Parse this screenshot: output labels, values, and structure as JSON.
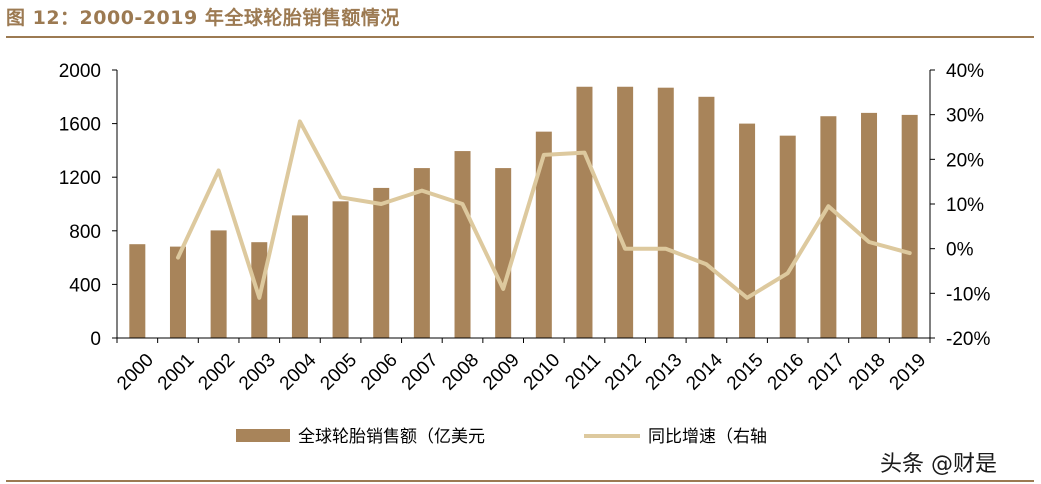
{
  "figure": {
    "title": "图 12：2000-2019 年全球轮胎销售额情况"
  },
  "watermark": "头条 @财是",
  "chart_data": {
    "type": "bar",
    "categories": [
      "2000",
      "2001",
      "2002",
      "2003",
      "2004",
      "2005",
      "2006",
      "2007",
      "2008",
      "2009",
      "2010",
      "2011",
      "2012",
      "2013",
      "2014",
      "2015",
      "2016",
      "2017",
      "2018",
      "2019"
    ],
    "series": [
      {
        "name": "全球轮胎销售额（亿美元",
        "type": "bar",
        "axis": "left",
        "color": "#a8845a",
        "values": [
          700,
          682,
          803,
          715,
          915,
          1020,
          1120,
          1268,
          1395,
          1268,
          1540,
          1875,
          1875,
          1868,
          1800,
          1600,
          1510,
          1655,
          1680,
          1665
        ]
      },
      {
        "name": "同比增速（右轴",
        "type": "line",
        "axis": "right",
        "color": "#ddc99e",
        "values": [
          null,
          -0.02,
          0.175,
          -0.11,
          0.285,
          0.115,
          0.1,
          0.13,
          0.1,
          -0.09,
          0.21,
          0.215,
          0.0,
          0.0,
          -0.035,
          -0.11,
          -0.055,
          0.095,
          0.015,
          -0.01
        ]
      }
    ],
    "y_left": {
      "range": [
        0,
        2000
      ],
      "ticks": [
        0,
        400,
        800,
        1200,
        1600,
        2000
      ]
    },
    "y_right": {
      "range": [
        -0.2,
        0.4
      ],
      "ticks": [
        "-20%",
        "-10%",
        "0%",
        "10%",
        "20%",
        "30%",
        "40%"
      ]
    },
    "grid": false,
    "legend_position": "bottom"
  }
}
